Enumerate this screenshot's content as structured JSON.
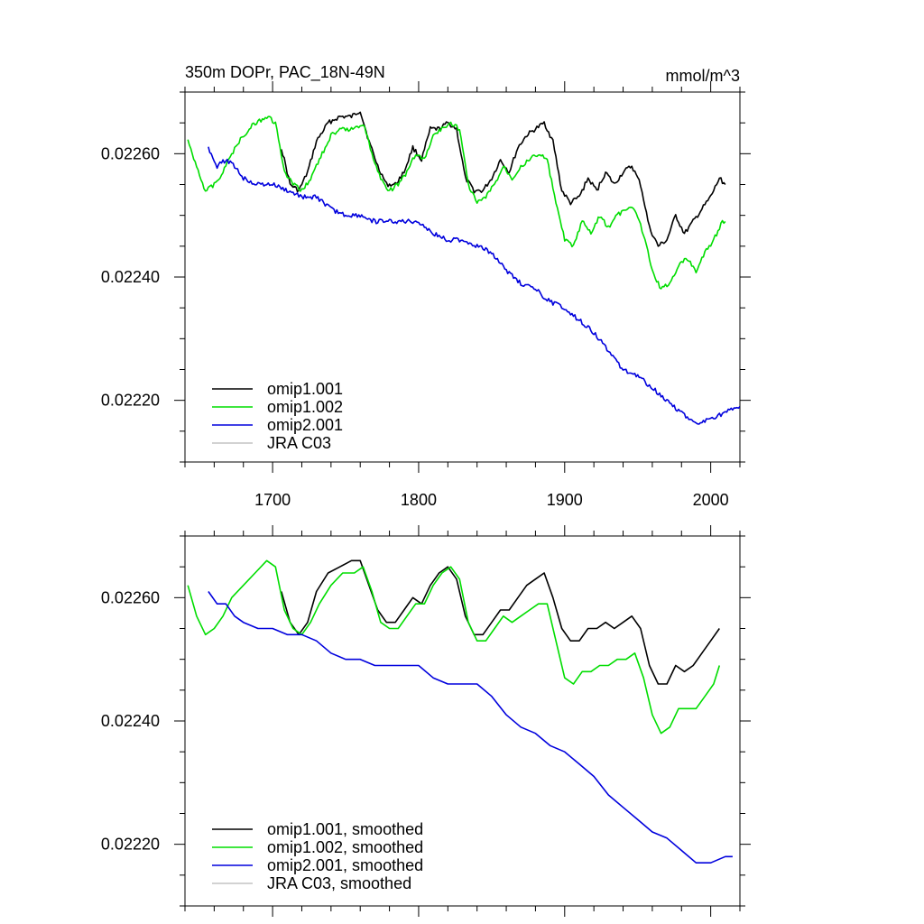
{
  "chart_data": [
    {
      "type": "line",
      "title": "350m DOPr, PAC_18N-49N",
      "units": "mmol/m^3",
      "xlabel": "",
      "ylabel": "",
      "xlim": [
        1640,
        2020
      ],
      "ylim": [
        0.0221,
        0.0227
      ],
      "x_ticks": [
        1700,
        1800,
        1900,
        2000
      ],
      "x_tick_labels": [
        "1700",
        "1800",
        "1900",
        "2000"
      ],
      "y_ticks": [
        0.0222,
        0.0224,
        0.0226
      ],
      "y_tick_labels": [
        "0.02220",
        "0.02240",
        "0.02260"
      ],
      "legend_position": "bottom-left",
      "series": [
        {
          "name": "omip1.001",
          "legend": "omip1.001",
          "color": "#000000",
          "x": [
            1706,
            1712,
            1718,
            1724,
            1730,
            1738,
            1746,
            1754,
            1760,
            1766,
            1772,
            1778,
            1784,
            1790,
            1796,
            1802,
            1808,
            1814,
            1820,
            1826,
            1832,
            1838,
            1844,
            1850,
            1856,
            1862,
            1868,
            1874,
            1880,
            1886,
            1892,
            1898,
            1904,
            1910,
            1916,
            1922,
            1928,
            1934,
            1940,
            1946,
            1952,
            1958,
            1964,
            1970,
            1976,
            1982,
            1988,
            1994,
            2000,
            2006,
            2010
          ],
          "y": [
            0.02261,
            0.02255,
            0.02254,
            0.02257,
            0.02262,
            0.02265,
            0.02266,
            0.02266,
            0.02267,
            0.02262,
            0.02258,
            0.02255,
            0.02255,
            0.02257,
            0.02261,
            0.02259,
            0.02264,
            0.02264,
            0.02265,
            0.02264,
            0.02256,
            0.02254,
            0.02254,
            0.02256,
            0.02259,
            0.02257,
            0.02261,
            0.02263,
            0.02264,
            0.02265,
            0.02262,
            0.02254,
            0.02252,
            0.02253,
            0.02256,
            0.02254,
            0.02257,
            0.02255,
            0.02257,
            0.02258,
            0.02255,
            0.02248,
            0.02245,
            0.02246,
            0.0225,
            0.02247,
            0.02249,
            0.02251,
            0.02253,
            0.02256,
            0.02255
          ]
        },
        {
          "name": "omip1.002",
          "legend": "omip1.002",
          "color": "#00dd00",
          "x": [
            1642,
            1648,
            1654,
            1660,
            1666,
            1672,
            1680,
            1688,
            1696,
            1702,
            1708,
            1714,
            1720,
            1726,
            1732,
            1740,
            1748,
            1756,
            1762,
            1768,
            1774,
            1780,
            1786,
            1792,
            1798,
            1804,
            1810,
            1816,
            1822,
            1828,
            1834,
            1840,
            1846,
            1852,
            1858,
            1864,
            1870,
            1876,
            1882,
            1888,
            1894,
            1900,
            1906,
            1912,
            1918,
            1924,
            1930,
            1936,
            1942,
            1948,
            1954,
            1960,
            1966,
            1972,
            1978,
            1984,
            1990,
            1996,
            2002,
            2008,
            2010
          ],
          "y": [
            0.02262,
            0.02258,
            0.02254,
            0.02255,
            0.02257,
            0.0226,
            0.02263,
            0.02265,
            0.02266,
            0.02265,
            0.02257,
            0.02255,
            0.02254,
            0.02256,
            0.02259,
            0.02263,
            0.02264,
            0.02264,
            0.02265,
            0.0226,
            0.02256,
            0.02254,
            0.02255,
            0.02257,
            0.0226,
            0.02259,
            0.02263,
            0.02264,
            0.02265,
            0.02264,
            0.02255,
            0.02252,
            0.02253,
            0.02255,
            0.02258,
            0.02256,
            0.02258,
            0.02259,
            0.0226,
            0.02259,
            0.02252,
            0.02246,
            0.02245,
            0.02249,
            0.02247,
            0.0225,
            0.02248,
            0.0225,
            0.02251,
            0.02251,
            0.02247,
            0.02241,
            0.02238,
            0.02239,
            0.02242,
            0.02243,
            0.02241,
            0.02244,
            0.02246,
            0.02249,
            0.02249
          ]
        },
        {
          "name": "omip2.001",
          "legend": "omip2.001",
          "color": "#0000dd",
          "x": [
            1656,
            1662,
            1668,
            1674,
            1680,
            1690,
            1700,
            1710,
            1720,
            1730,
            1740,
            1750,
            1760,
            1770,
            1780,
            1790,
            1800,
            1810,
            1820,
            1830,
            1840,
            1850,
            1860,
            1870,
            1880,
            1890,
            1900,
            1910,
            1920,
            1930,
            1940,
            1950,
            1960,
            1970,
            1980,
            1990,
            2000,
            2010,
            2020
          ],
          "y": [
            0.02261,
            0.02258,
            0.02259,
            0.02258,
            0.02256,
            0.02255,
            0.02255,
            0.02254,
            0.02253,
            0.02253,
            0.02251,
            0.0225,
            0.0225,
            0.02249,
            0.02249,
            0.02249,
            0.02249,
            0.02247,
            0.02246,
            0.02246,
            0.02245,
            0.02244,
            0.02241,
            0.02239,
            0.02238,
            0.02236,
            0.02235,
            0.02233,
            0.02231,
            0.02228,
            0.02225,
            0.02224,
            0.02222,
            0.0222,
            0.02218,
            0.02216,
            0.02217,
            0.02218,
            0.02219
          ]
        },
        {
          "name": "JRA C03",
          "legend": "JRA C03",
          "color": "#c4c4c4",
          "x": [],
          "y": []
        }
      ]
    },
    {
      "type": "line",
      "title": "",
      "xlabel": "",
      "ylabel": "",
      "xlim": [
        1640,
        2020
      ],
      "ylim": [
        0.0221,
        0.0227
      ],
      "x_ticks": [
        1700,
        1800,
        1900,
        2000
      ],
      "x_tick_labels": [],
      "y_ticks": [
        0.0222,
        0.0224,
        0.0226
      ],
      "y_tick_labels": [
        "0.02220",
        "0.02240",
        "0.02260"
      ],
      "legend_position": "bottom-left",
      "series": [
        {
          "name": "omip1.001",
          "legend": "omip1.001, smoothed",
          "color": "#000000",
          "x": [
            1706,
            1712,
            1718,
            1724,
            1730,
            1738,
            1746,
            1754,
            1760,
            1766,
            1772,
            1778,
            1784,
            1790,
            1796,
            1802,
            1808,
            1814,
            1820,
            1826,
            1832,
            1838,
            1844,
            1850,
            1856,
            1862,
            1868,
            1874,
            1880,
            1886,
            1892,
            1898,
            1904,
            1910,
            1916,
            1922,
            1928,
            1934,
            1940,
            1946,
            1952,
            1958,
            1964,
            1970,
            1976,
            1982,
            1988,
            1994,
            2000,
            2006
          ],
          "y": [
            0.02261,
            0.02256,
            0.02254,
            0.02256,
            0.02261,
            0.02264,
            0.02265,
            0.02266,
            0.02266,
            0.02262,
            0.02258,
            0.02256,
            0.02256,
            0.02258,
            0.0226,
            0.02259,
            0.02262,
            0.02264,
            0.02265,
            0.02263,
            0.02257,
            0.02254,
            0.02254,
            0.02256,
            0.02258,
            0.02258,
            0.0226,
            0.02262,
            0.02263,
            0.02264,
            0.0226,
            0.02255,
            0.02253,
            0.02253,
            0.02255,
            0.02255,
            0.02256,
            0.02255,
            0.02256,
            0.02257,
            0.02255,
            0.02249,
            0.02246,
            0.02246,
            0.02249,
            0.02248,
            0.02249,
            0.02251,
            0.02253,
            0.02255
          ]
        },
        {
          "name": "omip1.002",
          "legend": "omip1.002, smoothed",
          "color": "#00dd00",
          "x": [
            1642,
            1648,
            1654,
            1660,
            1666,
            1672,
            1680,
            1688,
            1696,
            1702,
            1708,
            1714,
            1720,
            1726,
            1732,
            1740,
            1748,
            1756,
            1762,
            1768,
            1774,
            1780,
            1786,
            1792,
            1798,
            1804,
            1810,
            1816,
            1822,
            1828,
            1834,
            1840,
            1846,
            1852,
            1858,
            1864,
            1870,
            1876,
            1882,
            1888,
            1894,
            1900,
            1906,
            1912,
            1918,
            1924,
            1930,
            1936,
            1942,
            1948,
            1954,
            1960,
            1966,
            1972,
            1978,
            1984,
            1990,
            1996,
            2002,
            2006
          ],
          "y": [
            0.02262,
            0.02257,
            0.02254,
            0.02255,
            0.02257,
            0.0226,
            0.02262,
            0.02264,
            0.02266,
            0.02265,
            0.02258,
            0.02255,
            0.02254,
            0.02256,
            0.02259,
            0.02262,
            0.02264,
            0.02264,
            0.02265,
            0.02261,
            0.02256,
            0.02255,
            0.02255,
            0.02257,
            0.02259,
            0.02259,
            0.02262,
            0.02264,
            0.02265,
            0.02263,
            0.02256,
            0.02253,
            0.02253,
            0.02255,
            0.02257,
            0.02256,
            0.02257,
            0.02258,
            0.02259,
            0.02259,
            0.02253,
            0.02247,
            0.02246,
            0.02248,
            0.02248,
            0.02249,
            0.02249,
            0.0225,
            0.0225,
            0.02251,
            0.02247,
            0.02241,
            0.02238,
            0.02239,
            0.02242,
            0.02242,
            0.02242,
            0.02244,
            0.02246,
            0.02249
          ]
        },
        {
          "name": "omip2.001",
          "legend": "omip2.001, smoothed",
          "color": "#0000dd",
          "x": [
            1656,
            1662,
            1668,
            1674,
            1680,
            1690,
            1700,
            1710,
            1720,
            1730,
            1740,
            1750,
            1760,
            1770,
            1780,
            1790,
            1800,
            1810,
            1820,
            1830,
            1840,
            1850,
            1860,
            1870,
            1880,
            1890,
            1900,
            1910,
            1920,
            1930,
            1940,
            1950,
            1960,
            1970,
            1980,
            1990,
            2000,
            2010,
            2015
          ],
          "y": [
            0.02261,
            0.02259,
            0.02259,
            0.02257,
            0.02256,
            0.02255,
            0.02255,
            0.02254,
            0.02254,
            0.02253,
            0.02251,
            0.0225,
            0.0225,
            0.02249,
            0.02249,
            0.02249,
            0.02249,
            0.02247,
            0.02246,
            0.02246,
            0.02246,
            0.02244,
            0.02241,
            0.02239,
            0.02238,
            0.02236,
            0.02235,
            0.02233,
            0.02231,
            0.02228,
            0.02226,
            0.02224,
            0.02222,
            0.02221,
            0.02219,
            0.02217,
            0.02217,
            0.02218,
            0.02218
          ]
        },
        {
          "name": "JRA C03",
          "legend": "JRA C03, smoothed",
          "color": "#c4c4c4",
          "x": [],
          "y": []
        }
      ]
    }
  ]
}
